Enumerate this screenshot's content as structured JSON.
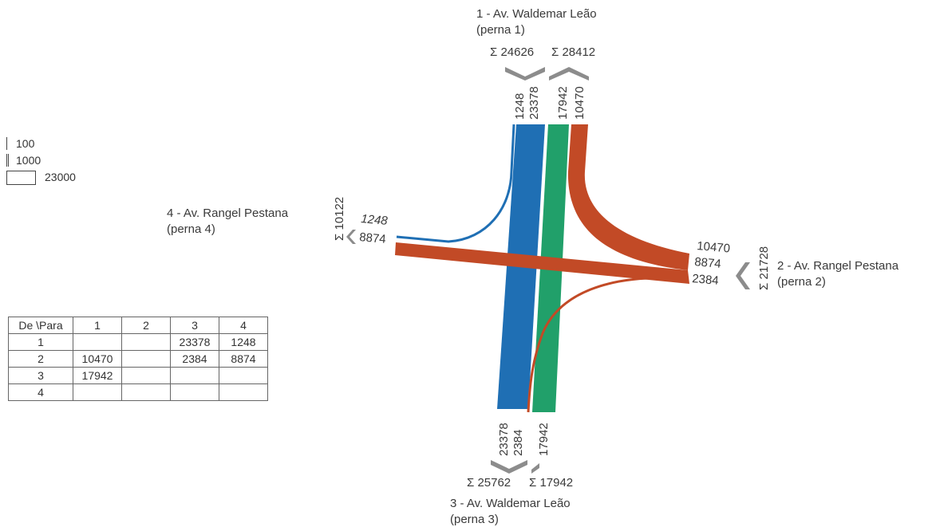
{
  "legs": {
    "north": {
      "name": "1 - Av. Waldemar Leão",
      "sub": "(perna 1)",
      "sum_in": "Σ 24626",
      "sum_out": "Σ 28412",
      "flows": [
        "1248",
        "23378",
        "17942",
        "10470"
      ]
    },
    "east": {
      "name": "2 - Av. Rangel Pestana",
      "sub": "(perna 2)",
      "sum": "Σ 21728",
      "flows": [
        "10470",
        "8874",
        "2384"
      ]
    },
    "south": {
      "name": "3 - Av. Waldemar Leão",
      "sub": "(perna 3)",
      "sum_in": "Σ 25762",
      "sum_out": "Σ 17942",
      "flows": [
        "23378",
        "2384",
        "17942"
      ]
    },
    "west": {
      "name": "4 - Av. Rangel Pestana",
      "sub": "(perna 4)",
      "sum": "Σ 10122",
      "flows": [
        "1248",
        "8874"
      ]
    }
  },
  "legend": [
    "100",
    "1000",
    "23000"
  ],
  "od_table": {
    "header": [
      "De \\Para",
      "1",
      "2",
      "3",
      "4"
    ],
    "rows": [
      [
        "1",
        "",
        "",
        "23378",
        "1248"
      ],
      [
        "2",
        "10470",
        "",
        "2384",
        "8874"
      ],
      [
        "3",
        "17942",
        "",
        "",
        ""
      ],
      [
        "4",
        "",
        "",
        "",
        ""
      ]
    ]
  },
  "colors": {
    "blue": "#1f6fb4",
    "green": "#21a06a",
    "red": "#c24a26",
    "grey": "#8c8c8c"
  }
}
